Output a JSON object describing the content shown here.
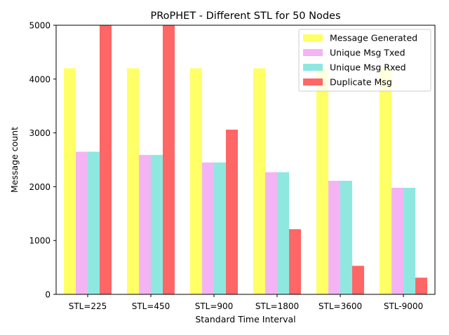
{
  "chart_data": {
    "type": "bar",
    "title": "PRoPHET - Different STL for 50 Nodes",
    "xlabel": "Standard Time Interval",
    "ylabel": "Message count",
    "ylim": [
      0,
      5000
    ],
    "yticks": [
      0,
      1000,
      2000,
      3000,
      4000,
      5000
    ],
    "categories": [
      "STL=225",
      "STL=450",
      "STL=900",
      "STL=1800",
      "STL=3600",
      "STL-9000"
    ],
    "grid": false,
    "legend_position": "top-right",
    "series": [
      {
        "name": "Message Generated",
        "color": "#ffff66",
        "values": [
          4200,
          4200,
          4200,
          4200,
          4200,
          4200
        ]
      },
      {
        "name": "Unique Msg Txed",
        "color": "#f4b4f4",
        "values": [
          2650,
          2590,
          2450,
          2270,
          2110,
          1980
        ]
      },
      {
        "name": "Unique Msg Rxed",
        "color": "#8ee8e0",
        "values": [
          2650,
          2590,
          2450,
          2270,
          2110,
          1980
        ]
      },
      {
        "name": "Duplicate Msg",
        "color": "#ff6666",
        "values": [
          5000,
          5000,
          3060,
          1210,
          530,
          310
        ]
      }
    ]
  }
}
